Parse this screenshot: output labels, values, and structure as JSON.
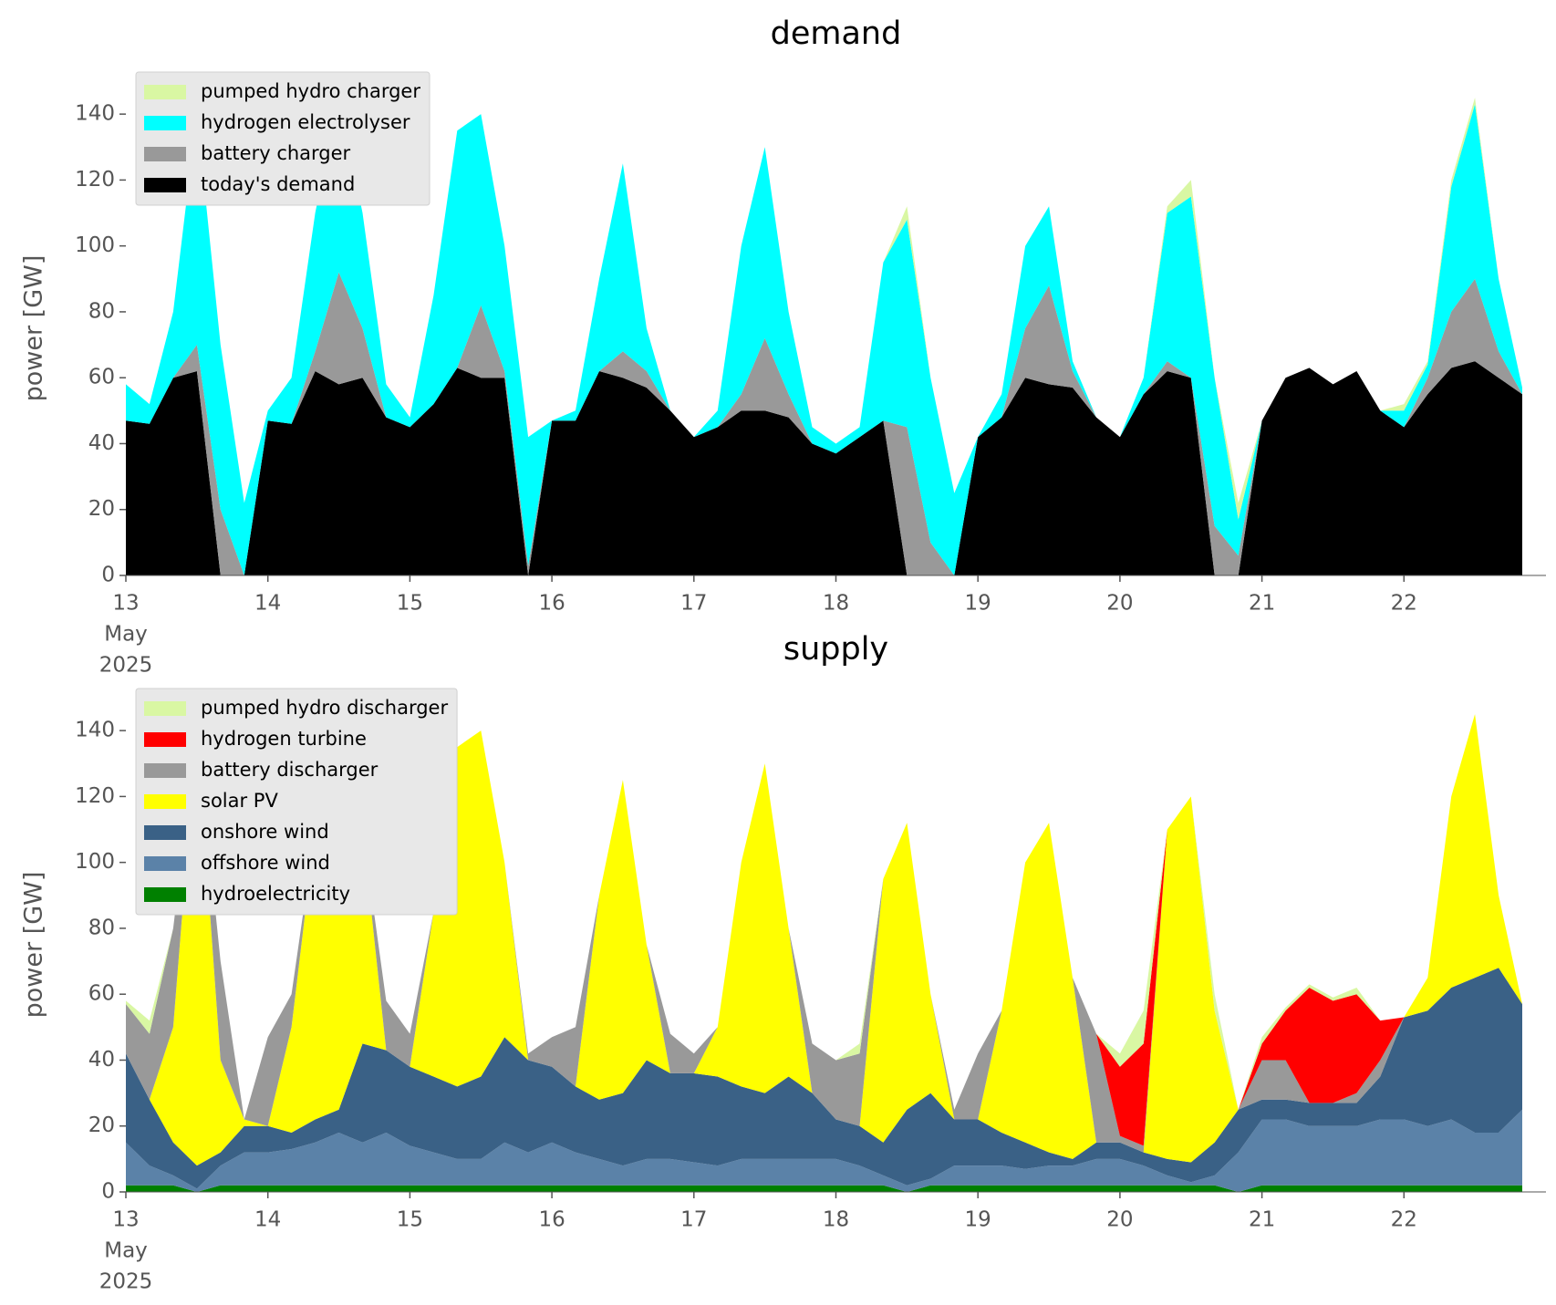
{
  "chart_data": [
    {
      "type": "stacked_area",
      "title": "demand",
      "ylabel": "power [GW]",
      "legend": "upper left",
      "x": [
        "2025-05-13T00:00",
        "2025-05-13T04:00",
        "2025-05-13T08:00",
        "2025-05-13T12:00",
        "2025-05-13T16:00",
        "2025-05-13T20:00",
        "2025-05-14T00:00",
        "2025-05-14T04:00",
        "2025-05-14T08:00",
        "2025-05-14T12:00",
        "2025-05-14T16:00",
        "2025-05-14T20:00",
        "2025-05-15T00:00",
        "2025-05-15T04:00",
        "2025-05-15T08:00",
        "2025-05-15T12:00",
        "2025-05-15T16:00",
        "2025-05-15T20:00",
        "2025-05-16T00:00",
        "2025-05-16T04:00",
        "2025-05-16T08:00",
        "2025-05-16T12:00",
        "2025-05-16T16:00",
        "2025-05-16T20:00",
        "2025-05-17T00:00",
        "2025-05-17T04:00",
        "2025-05-17T08:00",
        "2025-05-17T12:00",
        "2025-05-17T16:00",
        "2025-05-17T20:00",
        "2025-05-18T00:00",
        "2025-05-18T04:00",
        "2025-05-18T08:00",
        "2025-05-18T12:00",
        "2025-05-18T16:00",
        "2025-05-18T20:00",
        "2025-05-19T00:00",
        "2025-05-19T04:00",
        "2025-05-19T08:00",
        "2025-05-19T12:00",
        "2025-05-19T16:00",
        "2025-05-19T20:00",
        "2025-05-20T00:00",
        "2025-05-20T04:00",
        "2025-05-20T08:00",
        "2025-05-20T12:00",
        "2025-05-20T16:00",
        "2025-05-20T20:00",
        "2025-05-21T00:00",
        "2025-05-21T04:00",
        "2025-05-21T08:00",
        "2025-05-21T12:00",
        "2025-05-21T16:00",
        "2025-05-21T20:00",
        "2025-05-22T00:00",
        "2025-05-22T04:00",
        "2025-05-22T08:00",
        "2025-05-22T12:00",
        "2025-05-22T16:00",
        "2025-05-22T20:00"
      ],
      "xlim": [
        "2025-05-13",
        "2025-05-23"
      ],
      "xticks": [
        {
          "value": "2025-05-13",
          "label": "13"
        },
        {
          "value": "2025-05-14",
          "label": "14"
        },
        {
          "value": "2025-05-15",
          "label": "15"
        },
        {
          "value": "2025-05-16",
          "label": "16"
        },
        {
          "value": "2025-05-17",
          "label": "17"
        },
        {
          "value": "2025-05-18",
          "label": "18"
        },
        {
          "value": "2025-05-19",
          "label": "19"
        },
        {
          "value": "2025-05-20",
          "label": "20"
        },
        {
          "value": "2025-05-21",
          "label": "21"
        },
        {
          "value": "2025-05-22",
          "label": "22"
        }
      ],
      "xtick_sublabels": [
        "May",
        "2025"
      ],
      "ylim": [
        0,
        150
      ],
      "yticks": [
        0,
        20,
        40,
        60,
        80,
        100,
        120,
        140
      ],
      "series": [
        {
          "name": "pumped hydro charger",
          "color": "#d9f7a3",
          "values": [
            0,
            0,
            0,
            0,
            0,
            0,
            0,
            0,
            0,
            0,
            0,
            0,
            0,
            0,
            0,
            0,
            0,
            0,
            0,
            0,
            0,
            0,
            0,
            0,
            0,
            0,
            0,
            0,
            0,
            0,
            0,
            0,
            0,
            4,
            0,
            0,
            0,
            0,
            0,
            0,
            0,
            0,
            0,
            0,
            2,
            5,
            0,
            5,
            0,
            0,
            0,
            0,
            0,
            0,
            2,
            1,
            2,
            2,
            0,
            0
          ]
        },
        {
          "name": "hydrogen electrolyser",
          "color": "#00ffff",
          "values": [
            11,
            6,
            20,
            70,
            50,
            22,
            3,
            14,
            42,
            53,
            35,
            10,
            3,
            33,
            72,
            58,
            38,
            39,
            0,
            3,
            28,
            57,
            13,
            0,
            0,
            5,
            45,
            58,
            25,
            5,
            3,
            3,
            48,
            63,
            50,
            25,
            0,
            7,
            25,
            24,
            3,
            0,
            0,
            5,
            45,
            55,
            45,
            11,
            0,
            0,
            0,
            0,
            0,
            0,
            5,
            4,
            38,
            53,
            22,
            2
          ]
        },
        {
          "name": "battery charger",
          "color": "#999999",
          "values": [
            0,
            0,
            0,
            8,
            20,
            0,
            0,
            0,
            6,
            34,
            15,
            0,
            0,
            0,
            0,
            22,
            2,
            3,
            0,
            0,
            0,
            8,
            5,
            0,
            0,
            0,
            5,
            22,
            7,
            0,
            0,
            0,
            0,
            45,
            10,
            0,
            0,
            0,
            15,
            30,
            5,
            0,
            0,
            0,
            3,
            0,
            15,
            6,
            0,
            0,
            0,
            0,
            0,
            0,
            0,
            5,
            17,
            25,
            8,
            0
          ]
        },
        {
          "name": "today's demand",
          "color": "#000000",
          "values": [
            47,
            46,
            60,
            62,
            0,
            0,
            47,
            46,
            62,
            58,
            60,
            48,
            45,
            52,
            63,
            60,
            60,
            0,
            47,
            47,
            62,
            60,
            57,
            50,
            42,
            45,
            50,
            50,
            48,
            40,
            37,
            42,
            47,
            0,
            0,
            0,
            42,
            48,
            60,
            58,
            57,
            48,
            42,
            55,
            62,
            60,
            0,
            0,
            47,
            60,
            63,
            58,
            62,
            50,
            45,
            55,
            63,
            65,
            60,
            55
          ]
        }
      ]
    },
    {
      "type": "stacked_area",
      "title": "supply",
      "ylabel": "power [GW]",
      "legend": "upper left",
      "x": [
        "2025-05-13T00:00",
        "2025-05-13T04:00",
        "2025-05-13T08:00",
        "2025-05-13T12:00",
        "2025-05-13T16:00",
        "2025-05-13T20:00",
        "2025-05-14T00:00",
        "2025-05-14T04:00",
        "2025-05-14T08:00",
        "2025-05-14T12:00",
        "2025-05-14T16:00",
        "2025-05-14T20:00",
        "2025-05-15T00:00",
        "2025-05-15T04:00",
        "2025-05-15T08:00",
        "2025-05-15T12:00",
        "2025-05-15T16:00",
        "2025-05-15T20:00",
        "2025-05-16T00:00",
        "2025-05-16T04:00",
        "2025-05-16T08:00",
        "2025-05-16T12:00",
        "2025-05-16T16:00",
        "2025-05-16T20:00",
        "2025-05-17T00:00",
        "2025-05-17T04:00",
        "2025-05-17T08:00",
        "2025-05-17T12:00",
        "2025-05-17T16:00",
        "2025-05-17T20:00",
        "2025-05-18T00:00",
        "2025-05-18T04:00",
        "2025-05-18T08:00",
        "2025-05-18T12:00",
        "2025-05-18T16:00",
        "2025-05-18T20:00",
        "2025-05-19T00:00",
        "2025-05-19T04:00",
        "2025-05-19T08:00",
        "2025-05-19T12:00",
        "2025-05-19T16:00",
        "2025-05-19T20:00",
        "2025-05-20T00:00",
        "2025-05-20T04:00",
        "2025-05-20T08:00",
        "2025-05-20T12:00",
        "2025-05-20T16:00",
        "2025-05-20T20:00",
        "2025-05-21T00:00",
        "2025-05-21T04:00",
        "2025-05-21T08:00",
        "2025-05-21T12:00",
        "2025-05-21T16:00",
        "2025-05-21T20:00",
        "2025-05-22T00:00",
        "2025-05-22T04:00",
        "2025-05-22T08:00",
        "2025-05-22T12:00",
        "2025-05-22T16:00",
        "2025-05-22T20:00"
      ],
      "xlim": [
        "2025-05-13",
        "2025-05-23"
      ],
      "xticks": [
        {
          "value": "2025-05-13",
          "label": "13"
        },
        {
          "value": "2025-05-14",
          "label": "14"
        },
        {
          "value": "2025-05-15",
          "label": "15"
        },
        {
          "value": "2025-05-16",
          "label": "16"
        },
        {
          "value": "2025-05-17",
          "label": "17"
        },
        {
          "value": "2025-05-18",
          "label": "18"
        },
        {
          "value": "2025-05-19",
          "label": "19"
        },
        {
          "value": "2025-05-20",
          "label": "20"
        },
        {
          "value": "2025-05-21",
          "label": "21"
        },
        {
          "value": "2025-05-22",
          "label": "22"
        }
      ],
      "xtick_sublabels": [
        "May",
        "2025"
      ],
      "ylim": [
        0,
        150
      ],
      "yticks": [
        0,
        20,
        40,
        60,
        80,
        100,
        120,
        140
      ],
      "series": [
        {
          "name": "pumped hydro discharger",
          "color": "#d9f7a3",
          "values": [
            1,
            4,
            0,
            0,
            0,
            0,
            0,
            0,
            0,
            0,
            0,
            0,
            0,
            0,
            0,
            0,
            0,
            0,
            0,
            0,
            0,
            0,
            0,
            0,
            0,
            0,
            0,
            0,
            0,
            0,
            0,
            3,
            0,
            0,
            0,
            0,
            0,
            0,
            0,
            0,
            0,
            0,
            4,
            10,
            0,
            0,
            5,
            0,
            2,
            1,
            1,
            1,
            2,
            0,
            0,
            0,
            0,
            0,
            0,
            0
          ]
        },
        {
          "name": "hydrogen turbine",
          "color": "#ff0000",
          "values": [
            0,
            0,
            0,
            0,
            0,
            0,
            0,
            0,
            0,
            0,
            0,
            0,
            0,
            0,
            0,
            0,
            0,
            0,
            0,
            0,
            0,
            0,
            0,
            0,
            0,
            0,
            0,
            0,
            0,
            0,
            0,
            0,
            0,
            0,
            0,
            0,
            0,
            0,
            0,
            0,
            0,
            0,
            21,
            31,
            0,
            0,
            0,
            0,
            5,
            15,
            35,
            31,
            30,
            12,
            0,
            0,
            0,
            0,
            0,
            0
          ]
        },
        {
          "name": "battery discharger",
          "color": "#999999",
          "values": [
            15,
            20,
            30,
            0,
            30,
            0,
            27,
            10,
            0,
            0,
            0,
            15,
            10,
            0,
            0,
            0,
            0,
            2,
            9,
            18,
            0,
            0,
            0,
            12,
            6,
            0,
            0,
            0,
            0,
            15,
            18,
            22,
            0,
            0,
            0,
            3,
            20,
            0,
            0,
            0,
            0,
            33,
            2,
            2,
            0,
            0,
            0,
            0,
            12,
            12,
            0,
            0,
            3,
            5,
            0,
            0,
            0,
            0,
            0,
            0
          ]
        },
        {
          "name": "solar PV",
          "color": "#ffff00",
          "values": [
            0,
            0,
            35,
            132,
            28,
            2,
            0,
            32,
            88,
            120,
            65,
            0,
            0,
            50,
            103,
            105,
            53,
            0,
            0,
            0,
            62,
            95,
            35,
            0,
            0,
            15,
            68,
            100,
            45,
            0,
            0,
            0,
            80,
            87,
            30,
            0,
            0,
            37,
            85,
            100,
            55,
            0,
            0,
            0,
            100,
            111,
            40,
            0,
            0,
            0,
            0,
            0,
            0,
            0,
            0,
            10,
            58,
            80,
            22,
            0
          ]
        },
        {
          "name": "onshore wind",
          "color": "#3a6186",
          "values": [
            27,
            20,
            10,
            7,
            4,
            8,
            8,
            5,
            7,
            7,
            30,
            25,
            24,
            23,
            22,
            25,
            32,
            28,
            23,
            20,
            18,
            22,
            30,
            26,
            27,
            27,
            22,
            20,
            25,
            20,
            12,
            12,
            10,
            23,
            26,
            14,
            14,
            10,
            8,
            4,
            2,
            5,
            5,
            4,
            5,
            6,
            10,
            13,
            6,
            6,
            7,
            7,
            7,
            13,
            31,
            35,
            40,
            47,
            50,
            32
          ]
        },
        {
          "name": "offshore wind",
          "color": "#5b82a8",
          "values": [
            13,
            6,
            3,
            1,
            6,
            10,
            10,
            11,
            13,
            16,
            13,
            16,
            12,
            10,
            8,
            8,
            13,
            10,
            13,
            10,
            8,
            6,
            8,
            8,
            7,
            6,
            8,
            8,
            8,
            8,
            8,
            6,
            3,
            2,
            2,
            6,
            6,
            6,
            5,
            6,
            6,
            8,
            8,
            6,
            3,
            1,
            3,
            12,
            20,
            20,
            18,
            18,
            18,
            20,
            20,
            18,
            20,
            16,
            16,
            23
          ]
        },
        {
          "name": "hydroelectricity",
          "color": "#008000",
          "values": [
            2,
            2,
            2,
            0,
            2,
            2,
            2,
            2,
            2,
            2,
            2,
            2,
            2,
            2,
            2,
            2,
            2,
            2,
            2,
            2,
            2,
            2,
            2,
            2,
            2,
            2,
            2,
            2,
            2,
            2,
            2,
            2,
            2,
            0,
            2,
            2,
            2,
            2,
            2,
            2,
            2,
            2,
            2,
            2,
            2,
            2,
            2,
            0,
            2,
            2,
            2,
            2,
            2,
            2,
            2,
            2,
            2,
            2,
            2,
            2
          ]
        }
      ]
    }
  ]
}
